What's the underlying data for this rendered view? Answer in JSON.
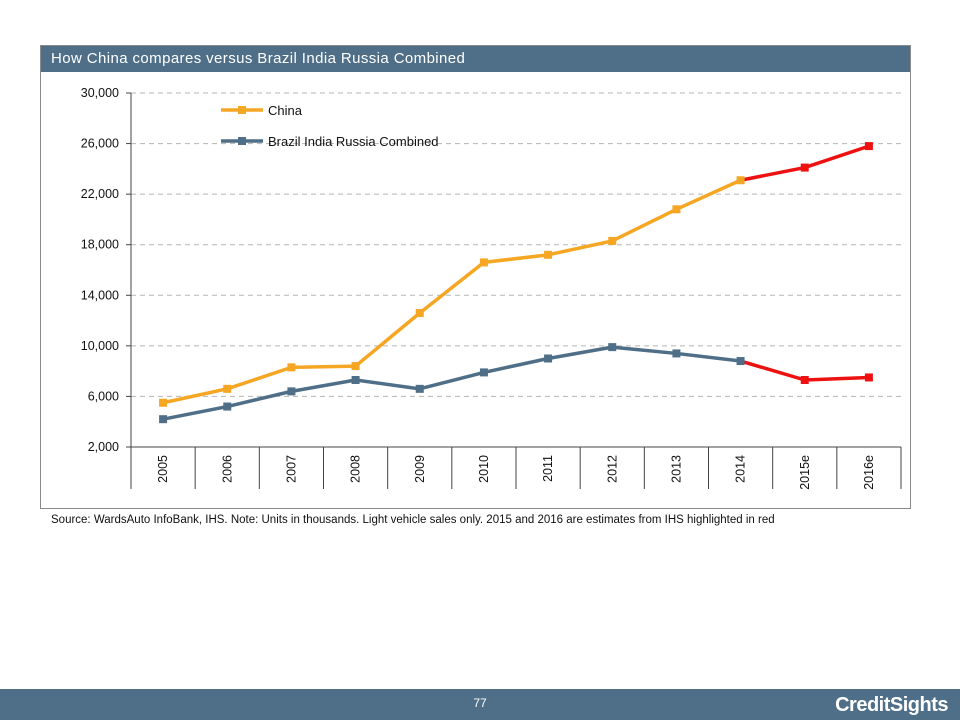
{
  "chart_data": {
    "type": "line",
    "title": "How China compares versus Brazil India Russia Combined",
    "categories": [
      "2005",
      "2006",
      "2007",
      "2008",
      "2009",
      "2010",
      "2011",
      "2012",
      "2013",
      "2014",
      "2015e",
      "2016e"
    ],
    "ylim": [
      2000,
      30000
    ],
    "yticks": [
      2000,
      6000,
      10000,
      14000,
      18000,
      22000,
      26000,
      30000
    ],
    "ytick_labels": [
      "2,000",
      "6,000",
      "10,000",
      "14,000",
      "18,000",
      "22,000",
      "26,000",
      "30,000"
    ],
    "grid": true,
    "legend_position": "top-left",
    "estimate_from_index": 9,
    "estimate_color": "#ee1111",
    "series": [
      {
        "name": "China",
        "color": "#f5a623",
        "values": [
          5500,
          6600,
          8300,
          8400,
          12600,
          16600,
          17200,
          18300,
          20800,
          23100,
          24100,
          25800
        ]
      },
      {
        "name": "Brazil India Russia Combined",
        "color": "#4f6f88",
        "values": [
          4200,
          5200,
          6400,
          7300,
          6600,
          7900,
          9000,
          9900,
          9400,
          8800,
          7300,
          7500
        ]
      }
    ]
  },
  "source_note": "Source: WardsAuto InfoBank, IHS. Note: Units in thousands. Light vehicle sales only. 2015 and 2016 are estimates from IHS highlighted in red",
  "footer": {
    "page_number": "77",
    "brand": "CreditSights"
  }
}
